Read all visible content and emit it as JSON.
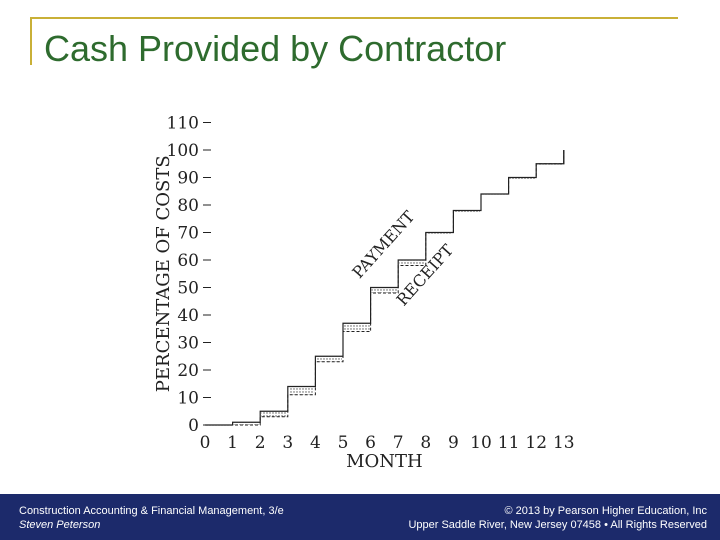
{
  "slide": {
    "title": "Cash Provided by Contractor"
  },
  "footer": {
    "left_line1": "Construction Accounting & Financial Management, 3/e",
    "left_line2": "Steven Peterson",
    "right_line1": "© 2013 by Pearson Higher Education, Inc",
    "right_line2": "Upper Saddle River, New Jersey 07458 • All Rights Reserved"
  },
  "colors": {
    "title": "#2e6b2e",
    "frame": "#c9b037",
    "footer_bg": "#1c2a6b",
    "line": "#222222"
  },
  "chart_data": {
    "type": "line",
    "xlabel": "MONTH",
    "ylabel": "PERCENTAGE OF COSTS",
    "xlim": [
      0,
      13
    ],
    "ylim": [
      0,
      110
    ],
    "x_ticks": [
      "0",
      "1",
      "2",
      "3",
      "4",
      "5",
      "6",
      "7",
      "8",
      "9",
      "10",
      "11",
      "12",
      "13"
    ],
    "y_ticks": [
      0,
      10,
      20,
      30,
      40,
      50,
      60,
      70,
      80,
      90,
      100,
      110
    ],
    "series": [
      {
        "name": "PAYMENT",
        "x": [
          0,
          1,
          2,
          3,
          4,
          5,
          6,
          7,
          8,
          9,
          10,
          11,
          12,
          13
        ],
        "values": [
          0,
          1,
          5,
          14,
          25,
          37,
          50,
          60,
          70,
          78,
          84,
          90,
          95,
          100
        ]
      },
      {
        "name": "RECEIPT",
        "x": [
          0,
          1,
          2,
          3,
          4,
          5,
          6,
          7,
          8,
          9,
          10,
          11,
          12,
          13
        ],
        "values": [
          0,
          0,
          3,
          11,
          23,
          34,
          48,
          58,
          70,
          78,
          84,
          90,
          95,
          100
        ]
      }
    ],
    "annotations": [
      "PAYMENT",
      "RECEIPT"
    ]
  }
}
